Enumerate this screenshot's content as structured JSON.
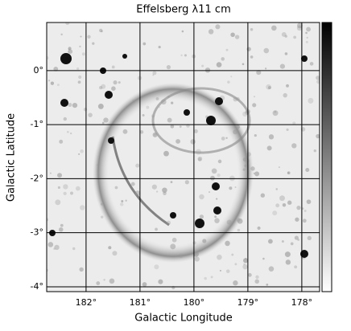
{
  "chart_data": {
    "type": "image",
    "title": "Effelsberg λ11 cm",
    "x_label": "Galactic Longitude",
    "y_label": "Galactic Latitude",
    "xlim": [
      182.73,
      177.67
    ],
    "xticks": [
      {
        "value": 182,
        "label": "182°"
      },
      {
        "value": 181,
        "label": "181°"
      },
      {
        "value": 180,
        "label": "180°"
      },
      {
        "value": 179,
        "label": "179°"
      },
      {
        "value": 178,
        "label": "178°"
      }
    ],
    "ylim": [
      -4.09,
      0.89
    ],
    "yticks": [
      {
        "value": 0,
        "label": "0°"
      },
      {
        "value": -1,
        "label": "-1°"
      },
      {
        "value": -2,
        "label": "-2°"
      },
      {
        "value": -3,
        "label": "-3°"
      },
      {
        "value": -4,
        "label": "-4°"
      }
    ],
    "grid": true
  }
}
